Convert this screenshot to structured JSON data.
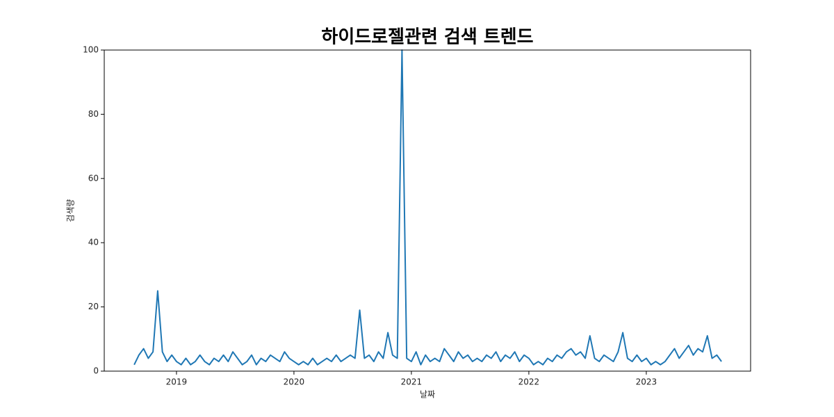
{
  "chart_data": {
    "type": "line",
    "title": "하이드로젤관련 검색 트렌드",
    "xlabel": "날짜",
    "ylabel": "검색량",
    "x": [
      2018.64,
      2018.68,
      2018.72,
      2018.76,
      2018.8,
      2018.84,
      2018.88,
      2018.92,
      2018.96,
      2019,
      2019.04,
      2019.08,
      2019.12,
      2019.16,
      2019.2,
      2019.24,
      2019.28,
      2019.32,
      2019.36,
      2019.4,
      2019.44,
      2019.48,
      2019.52,
      2019.56,
      2019.6,
      2019.64,
      2019.68,
      2019.72,
      2019.76,
      2019.8,
      2019.84,
      2019.88,
      2019.92,
      2019.96,
      2020,
      2020.04,
      2020.08,
      2020.12,
      2020.16,
      2020.2,
      2020.24,
      2020.28,
      2020.32,
      2020.36,
      2020.4,
      2020.44,
      2020.48,
      2020.52,
      2020.56,
      2020.6,
      2020.64,
      2020.68,
      2020.72,
      2020.76,
      2020.8,
      2020.84,
      2020.88,
      2020.92,
      2020.96,
      2021,
      2021.04,
      2021.08,
      2021.12,
      2021.16,
      2021.2,
      2021.24,
      2021.28,
      2021.32,
      2021.36,
      2021.4,
      2021.44,
      2021.48,
      2021.52,
      2021.56,
      2021.6,
      2021.64,
      2021.68,
      2021.72,
      2021.76,
      2021.8,
      2021.84,
      2021.88,
      2021.92,
      2021.96,
      2022,
      2022.04,
      2022.08,
      2022.12,
      2022.16,
      2022.2,
      2022.24,
      2022.28,
      2022.32,
      2022.36,
      2022.4,
      2022.44,
      2022.48,
      2022.52,
      2022.56,
      2022.6,
      2022.64,
      2022.68,
      2022.72,
      2022.76,
      2022.8,
      2022.84,
      2022.88,
      2022.92,
      2022.96,
      2023,
      2023.04,
      2023.08,
      2023.12,
      2023.16,
      2023.2,
      2023.24,
      2023.28,
      2023.32,
      2023.36,
      2023.4,
      2023.44,
      2023.48,
      2023.52,
      2023.56,
      2023.6,
      2023.64
    ],
    "series": [
      {
        "color": "#1f77b4",
        "values": [
          2,
          5,
          7,
          4,
          6,
          25,
          6,
          3,
          5,
          3,
          2,
          4,
          2,
          3,
          5,
          3,
          2,
          4,
          3,
          5,
          3,
          6,
          4,
          2,
          3,
          5,
          2,
          4,
          3,
          5,
          4,
          3,
          6,
          4,
          3,
          2,
          3,
          2,
          4,
          2,
          3,
          4,
          3,
          5,
          3,
          4,
          5,
          4,
          19,
          4,
          5,
          3,
          6,
          4,
          12,
          5,
          4,
          100,
          4,
          3,
          6,
          2,
          5,
          3,
          4,
          3,
          7,
          5,
          3,
          6,
          4,
          5,
          3,
          4,
          3,
          5,
          4,
          6,
          3,
          5,
          4,
          6,
          3,
          5,
          4,
          2,
          3,
          2,
          4,
          3,
          5,
          4,
          6,
          7,
          5,
          6,
          4,
          11,
          4,
          3,
          5,
          4,
          3,
          6,
          12,
          4,
          3,
          5,
          3,
          4,
          2,
          3,
          2,
          3,
          5,
          7,
          4,
          6,
          8,
          5,
          7,
          6,
          11,
          4,
          5,
          3
        ]
      }
    ],
    "xlim": [
      2018.385,
      2023.888
    ],
    "xticks": [
      2019,
      2020,
      2021,
      2022,
      2023
    ],
    "ylim": [
      0,
      100
    ],
    "yticks": [
      0,
      20,
      40,
      60,
      80,
      100
    ],
    "grid": false
  }
}
